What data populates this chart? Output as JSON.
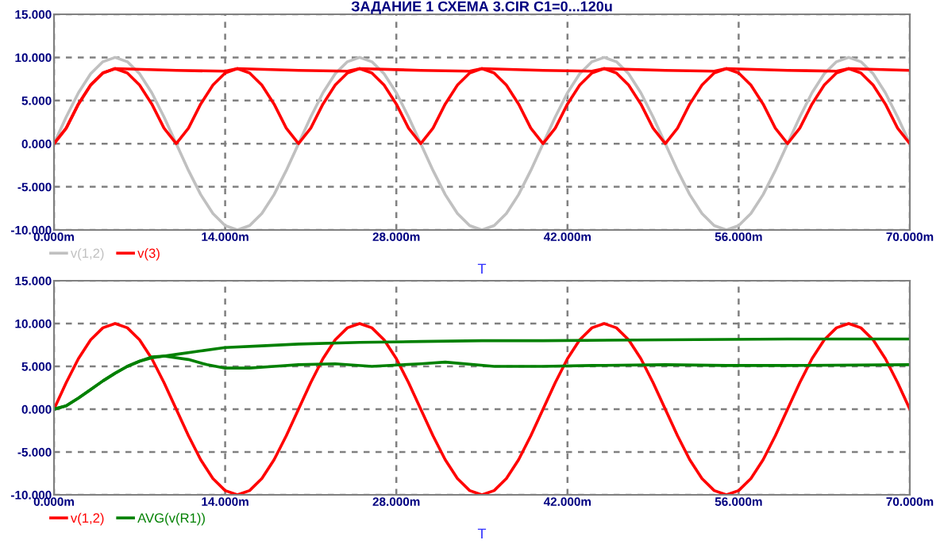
{
  "chart_data": [
    {
      "type": "line",
      "title": "ЗАДАНИЕ 1 СХЕМА 3.CIR C1=0...120u",
      "xlabel": "T",
      "xlim": [
        0,
        70
      ],
      "ylim": [
        -10,
        15
      ],
      "xticks": [
        {
          "value": 0,
          "label": "0.000m"
        },
        {
          "value": 14,
          "label": "14.000m"
        },
        {
          "value": 28,
          "label": "28.000m"
        },
        {
          "value": 42,
          "label": "42.000m"
        },
        {
          "value": 56,
          "label": "56.000m"
        },
        {
          "value": 70,
          "label": "70.000m"
        }
      ],
      "yticks": [
        {
          "value": -10,
          "label": "-10.000"
        },
        {
          "value": -5,
          "label": "-5.000"
        },
        {
          "value": 0,
          "label": "0.000"
        },
        {
          "value": 5,
          "label": "5.000"
        },
        {
          "value": 10,
          "label": "10.000"
        },
        {
          "value": 15,
          "label": "15.000"
        }
      ],
      "grid": true,
      "legend": "bottom left",
      "x": [
        0,
        1,
        2,
        3,
        4,
        5,
        6,
        7,
        8,
        9,
        10,
        11,
        12,
        13,
        14,
        15,
        16,
        17,
        18,
        19,
        20,
        21,
        22,
        23,
        24,
        25,
        26,
        27,
        28,
        29,
        30,
        31,
        32,
        33,
        34,
        35,
        36,
        37,
        38,
        39,
        40,
        41,
        42,
        43,
        44,
        45,
        46,
        47,
        48,
        49,
        50,
        51,
        52,
        53,
        54,
        55,
        56,
        57,
        58,
        59,
        60,
        61,
        62,
        63,
        64,
        65,
        66,
        67,
        68,
        69,
        70
      ],
      "series": [
        {
          "name": "v(1,2)",
          "color": "#c0c0c0",
          "values": [
            0,
            3.1,
            5.9,
            8.1,
            9.5,
            10,
            9.5,
            8.1,
            5.9,
            3.1,
            0,
            -3.1,
            -5.9,
            -8.1,
            -9.5,
            -10,
            -9.5,
            -8.1,
            -5.9,
            -3.1,
            0,
            3.1,
            5.9,
            8.1,
            9.5,
            10,
            9.5,
            8.1,
            5.9,
            3.1,
            0,
            -3.1,
            -5.9,
            -8.1,
            -9.5,
            -10,
            -9.5,
            -8.1,
            -5.9,
            -3.1,
            0,
            3.1,
            5.9,
            8.1,
            9.5,
            10,
            9.5,
            8.1,
            5.9,
            3.1,
            0,
            -3.1,
            -5.9,
            -8.1,
            -9.5,
            -10,
            -9.5,
            -8.1,
            -5.9,
            -3.1,
            0,
            3.1,
            5.9,
            8.1,
            9.5,
            10,
            9.5,
            8.1,
            5.9,
            3.1,
            0
          ]
        },
        {
          "name": "v(3)",
          "color": "#ff0000",
          "values": [
            0,
            1.8,
            4.6,
            6.8,
            8.2,
            8.7,
            8.2,
            6.8,
            4.6,
            1.8,
            0,
            1.8,
            4.6,
            6.8,
            8.2,
            8.7,
            8.2,
            6.8,
            4.6,
            1.8,
            0,
            1.8,
            4.6,
            6.8,
            8.2,
            8.7,
            8.2,
            6.8,
            4.6,
            1.8,
            0,
            1.8,
            4.6,
            6.8,
            8.2,
            8.7,
            8.2,
            6.8,
            4.6,
            1.8,
            0,
            1.8,
            4.6,
            6.8,
            8.2,
            8.7,
            8.2,
            6.8,
            4.6,
            1.8,
            0,
            1.8,
            4.6,
            6.8,
            8.2,
            8.7,
            8.2,
            6.8,
            4.6,
            1.8,
            0,
            1.8,
            4.6,
            6.8,
            8.2,
            8.7,
            8.2,
            6.8,
            4.6,
            1.8,
            0
          ]
        },
        {
          "color": "#ff0000",
          "x": [
            0,
            1,
            2,
            3,
            4,
            5,
            10,
            14,
            15,
            20,
            24,
            25,
            30,
            34,
            35,
            40,
            44,
            45,
            50,
            54,
            55,
            60,
            64,
            65,
            70
          ],
          "values": [
            0,
            1.8,
            4.6,
            6.8,
            8.2,
            8.7,
            8.5,
            8.4,
            8.7,
            8.5,
            8.4,
            8.7,
            8.5,
            8.4,
            8.7,
            8.5,
            8.4,
            8.7,
            8.5,
            8.4,
            8.7,
            8.5,
            8.4,
            8.7,
            8.5
          ]
        }
      ]
    },
    {
      "type": "line",
      "xlabel": "T",
      "xlim": [
        0,
        70
      ],
      "ylim": [
        -10,
        15
      ],
      "xticks": [
        {
          "value": 0,
          "label": "0.000m"
        },
        {
          "value": 14,
          "label": "14.000m"
        },
        {
          "value": 28,
          "label": "28.000m"
        },
        {
          "value": 42,
          "label": "42.000m"
        },
        {
          "value": 56,
          "label": "56.000m"
        },
        {
          "value": 70,
          "label": "70.000m"
        }
      ],
      "yticks": [
        {
          "value": -10,
          "label": "-10.000"
        },
        {
          "value": -5,
          "label": "-5.000"
        },
        {
          "value": 0,
          "label": "0.000"
        },
        {
          "value": 5,
          "label": "5.000"
        },
        {
          "value": 10,
          "label": "10.000"
        },
        {
          "value": 15,
          "label": "15.000"
        }
      ],
      "grid": true,
      "legend": "bottom left",
      "x": [
        0,
        1,
        2,
        3,
        4,
        5,
        6,
        7,
        8,
        9,
        10,
        11,
        12,
        13,
        14,
        15,
        16,
        17,
        18,
        19,
        20,
        21,
        22,
        23,
        24,
        25,
        26,
        27,
        28,
        29,
        30,
        31,
        32,
        33,
        34,
        35,
        36,
        37,
        38,
        39,
        40,
        41,
        42,
        43,
        44,
        45,
        46,
        47,
        48,
        49,
        50,
        51,
        52,
        53,
        54,
        55,
        56,
        57,
        58,
        59,
        60,
        61,
        62,
        63,
        64,
        65,
        66,
        67,
        68,
        69,
        70
      ],
      "series": [
        {
          "name": "v(1,2)",
          "color": "#ff0000",
          "values": [
            0,
            3.1,
            5.9,
            8.1,
            9.5,
            10,
            9.5,
            8.1,
            5.9,
            3.1,
            0,
            -3.1,
            -5.9,
            -8.1,
            -9.5,
            -10,
            -9.5,
            -8.1,
            -5.9,
            -3.1,
            0,
            3.1,
            5.9,
            8.1,
            9.5,
            10,
            9.5,
            8.1,
            5.9,
            3.1,
            0,
            -3.1,
            -5.9,
            -8.1,
            -9.5,
            -10,
            -9.5,
            -8.1,
            -5.9,
            -3.1,
            0,
            3.1,
            5.9,
            8.1,
            9.5,
            10,
            9.5,
            8.1,
            5.9,
            3.1,
            0,
            -3.1,
            -5.9,
            -8.1,
            -9.5,
            -10,
            -9.5,
            -8.1,
            -5.9,
            -3.1,
            0,
            3.1,
            5.9,
            8.1,
            9.5,
            10,
            9.5,
            8.1,
            5.9,
            3.1,
            0
          ]
        },
        {
          "name": "AVG(v(R1))",
          "color": "#008000",
          "x": [
            0,
            1,
            2,
            3,
            4,
            5,
            6,
            7,
            8,
            10,
            12,
            14,
            17,
            20,
            25,
            30,
            35,
            40,
            50,
            60,
            70
          ],
          "values": [
            0,
            0.4,
            1.3,
            2.3,
            3.3,
            4.2,
            5.0,
            5.6,
            6.0,
            6.4,
            6.8,
            7.2,
            7.4,
            7.6,
            7.8,
            7.9,
            8.0,
            8.0,
            8.1,
            8.2,
            8.2
          ]
        },
        {
          "color": "#008000",
          "x": [
            0,
            1,
            2,
            3,
            4,
            5,
            6,
            7,
            8,
            9,
            11,
            12.5,
            14,
            16,
            18,
            20,
            23,
            26,
            30,
            32,
            36,
            40,
            44,
            50,
            55,
            60,
            70
          ],
          "values": [
            0,
            0.4,
            1.3,
            2.3,
            3.3,
            4.2,
            5.0,
            5.6,
            6.1,
            6.2,
            5.8,
            5.2,
            4.8,
            4.8,
            5.0,
            5.2,
            5.3,
            5.0,
            5.3,
            5.5,
            5.0,
            5.0,
            5.1,
            5.2,
            5.1,
            5.1,
            5.2
          ]
        }
      ]
    }
  ]
}
